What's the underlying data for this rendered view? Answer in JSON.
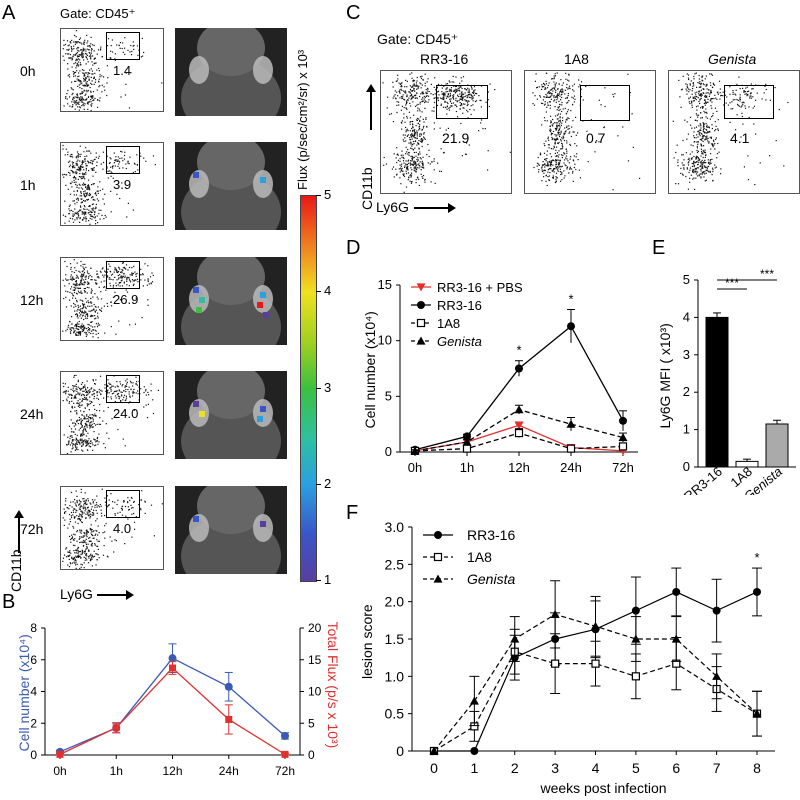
{
  "panel_letters": {
    "a": "A",
    "b": "B",
    "c": "C",
    "d": "D",
    "e": "E",
    "f": "F"
  },
  "panelA": {
    "gate": "Gate: CD45⁺",
    "rows": [
      {
        "time": "0h",
        "pct": "1.4",
        "luminescence": false
      },
      {
        "time": "1h",
        "pct": "3.9",
        "luminescence": true
      },
      {
        "time": "12h",
        "pct": "26.9",
        "luminescence": true
      },
      {
        "time": "24h",
        "pct": "24.0",
        "luminescence": true
      },
      {
        "time": "72h",
        "pct": "4.0",
        "luminescence": true
      }
    ],
    "y_axis": "CD11b",
    "x_axis": "Ly6G",
    "colorbar": {
      "label": "Flux (p/sec/cm²/sr) x 10³",
      "ticks": [
        "1",
        "2",
        "3",
        "4",
        "5"
      ],
      "range": [
        1,
        5
      ]
    }
  },
  "panelC": {
    "gate": "Gate: CD45⁺",
    "columns": [
      {
        "name": "RR3-16",
        "pct": "21.9",
        "italic": false
      },
      {
        "name": "1A8",
        "pct": "0.7",
        "italic": false
      },
      {
        "name": "Genista",
        "pct": "4.1",
        "italic": true
      }
    ],
    "y_axis": "CD11b",
    "x_axis": "Ly6G"
  },
  "chart_data": [
    {
      "panel": "B",
      "type": "line",
      "categories": [
        "0h",
        "1h",
        "12h",
        "24h",
        "72h"
      ],
      "ylabel_left": "Cell number (x10⁴)",
      "ylabel_right": "Total Flux (p/s x 10³)",
      "ylim_left": [
        0,
        8
      ],
      "ylim_right": [
        0,
        20
      ],
      "yticks_left": [
        0,
        2,
        4,
        6,
        8
      ],
      "yticks_right": [
        0,
        5,
        10,
        15,
        20
      ],
      "colors": {
        "left": "#3a5bb5",
        "right": "#e03030"
      },
      "series": [
        {
          "axis": "left",
          "values": [
            0.2,
            1.7,
            6.1,
            4.3,
            1.2
          ],
          "err": [
            0.1,
            0.3,
            0.9,
            0.9,
            0.2
          ]
        },
        {
          "axis": "right",
          "values": [
            0.1,
            4.3,
            13.7,
            5.6,
            0.1
          ],
          "err": [
            0.1,
            0.8,
            1.0,
            2.3,
            0.1
          ]
        }
      ]
    },
    {
      "panel": "D",
      "type": "line",
      "categories": [
        "0h",
        "1h",
        "12h",
        "24h",
        "72h"
      ],
      "ylabel": "Cell number (x10⁴)",
      "ylim": [
        0,
        15
      ],
      "yticks": [
        0,
        5,
        10,
        15
      ],
      "series": [
        {
          "name": "RR3-16 + PBS",
          "values": [
            0.1,
            0.9,
            2.4,
            0.4,
            0.1
          ],
          "err": [
            0.1,
            0.2,
            0.3,
            0.2,
            0.1
          ],
          "color": "#e03030",
          "marker": "triangle-down",
          "dash": false
        },
        {
          "name": "RR3-16",
          "values": [
            0.2,
            1.4,
            7.5,
            11.3,
            2.8
          ],
          "err": [
            0.1,
            0.2,
            0.7,
            1.5,
            0.9
          ],
          "color": "#000000",
          "marker": "circle",
          "dash": false
        },
        {
          "name": "1A8",
          "values": [
            0.1,
            0.3,
            1.7,
            0.3,
            0.5
          ],
          "err": [
            0.1,
            0.1,
            0.4,
            0.1,
            0.3
          ],
          "color": "#000000",
          "marker": "square-open",
          "dash": true
        },
        {
          "name": "Genista",
          "values": [
            0.1,
            0.9,
            3.8,
            2.5,
            1.3
          ],
          "err": [
            0.1,
            0.2,
            0.4,
            0.6,
            0.4
          ],
          "color": "#000000",
          "marker": "triangle",
          "dash": true
        }
      ],
      "annotations": [
        {
          "category": "12h",
          "text": "*"
        },
        {
          "category": "24h",
          "text": "*"
        }
      ]
    },
    {
      "panel": "E",
      "type": "bar",
      "categories": [
        "RR3-16",
        "1A8",
        "Genista"
      ],
      "values": [
        4.0,
        0.15,
        1.15
      ],
      "err": [
        0.12,
        0.06,
        0.1
      ],
      "colors": [
        "#000000",
        "#ffffff",
        "#aaaaaa"
      ],
      "ylabel": "Ly6G MFI ( x10³)",
      "ylim": [
        0,
        5
      ],
      "yticks": [
        0,
        1,
        2,
        3,
        4,
        5
      ],
      "annotations": [
        "***",
        "***"
      ]
    },
    {
      "panel": "F",
      "type": "line",
      "x": [
        0,
        1,
        2,
        3,
        4,
        5,
        6,
        7,
        8
      ],
      "xlabel": "weeks post infection",
      "ylabel": "lesion score",
      "ylim": [
        0,
        3.0
      ],
      "yticks": [
        0,
        0.5,
        1.0,
        1.5,
        2.0,
        2.5,
        3.0
      ],
      "ytick_labels": [
        "0",
        "0.5",
        "1.0",
        "1.5",
        "2.0",
        "2.5",
        "3.0"
      ],
      "series": [
        {
          "name": "RR3-16",
          "values": [
            0,
            0,
            1.25,
            1.5,
            1.63,
            1.88,
            2.13,
            1.88,
            2.13
          ],
          "err": [
            0,
            0,
            0.3,
            0.35,
            0.38,
            0.45,
            0.32,
            0.42,
            0.32
          ],
          "marker": "circle",
          "dash": false
        },
        {
          "name": "1A8",
          "values": [
            0,
            0.33,
            1.33,
            1.17,
            1.17,
            1.0,
            1.17,
            0.83,
            0.5
          ],
          "err": [
            0,
            0.2,
            0.3,
            0.4,
            0.3,
            0.3,
            0.35,
            0.3,
            0.3
          ],
          "marker": "square-open",
          "dash": true
        },
        {
          "name": "Genista",
          "values": [
            0,
            0.67,
            1.5,
            1.83,
            1.67,
            1.5,
            1.5,
            1.0,
            0.5
          ],
          "err": [
            0,
            0.33,
            0.3,
            0.45,
            0.4,
            0.3,
            0.3,
            0.3,
            0.3
          ],
          "marker": "triangle",
          "dash": true
        }
      ],
      "annotations": [
        {
          "x": 8,
          "text": "*"
        }
      ]
    }
  ]
}
